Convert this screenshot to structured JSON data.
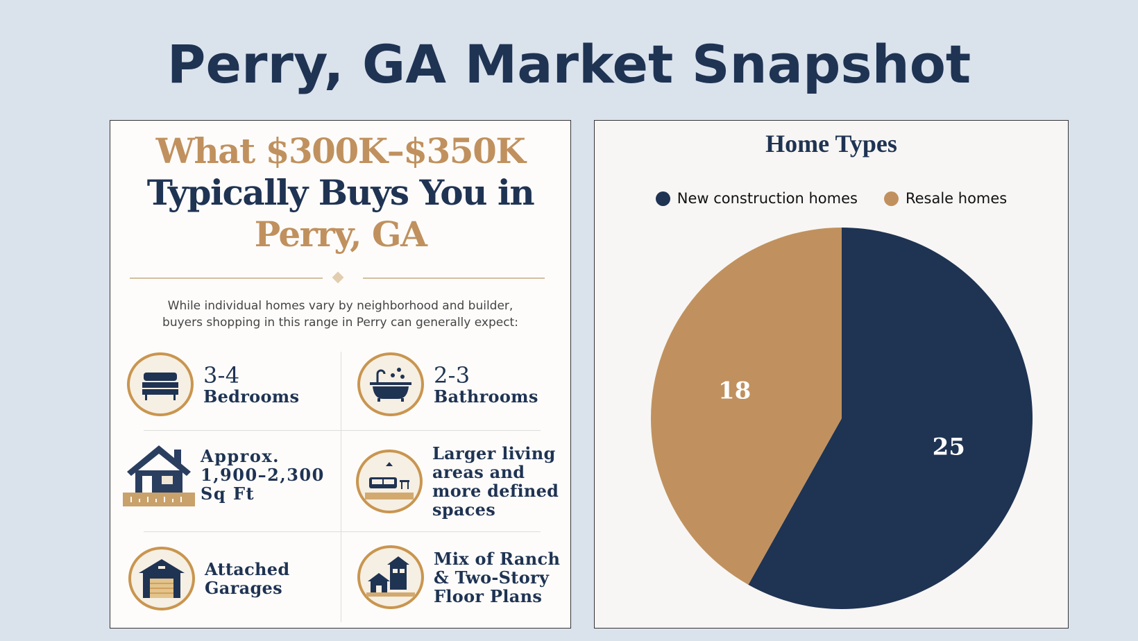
{
  "page_title": "Perry, GA Market Snapshot",
  "infographic": {
    "heading_line1": "What $300K–$350K",
    "heading_line2": "Typically Buys You in",
    "heading_line3": "Perry, GA",
    "intro_line1": "While individual homes vary by neighborhood and builder,",
    "intro_line2": "buyers shopping in this range in Perry can generally expect:",
    "features": [
      {
        "icon": "bed-icon",
        "value": "3-4",
        "label": "Bedrooms"
      },
      {
        "icon": "bathtub-icon",
        "value": "2-3",
        "label": "Bathrooms"
      },
      {
        "icon": "house-ruler-icon",
        "line1": "Approx.",
        "line2": "1,900–2,300",
        "line3": "Sq Ft"
      },
      {
        "icon": "living-room-icon",
        "line1": "Larger living",
        "line2": "areas and",
        "line3": "more defined",
        "line4": "spaces"
      },
      {
        "icon": "garage-icon",
        "line1": "Attached",
        "line2": "Garages"
      },
      {
        "icon": "floor-plan-icon",
        "line1": "Mix of Ranch",
        "line2": "& Two-Story",
        "line3": "Floor Plans"
      }
    ]
  },
  "colors": {
    "navy": "#1f3353",
    "tan": "#c0915e",
    "background": "#dae2ec"
  },
  "chart_data": {
    "type": "pie",
    "title": "Home Types",
    "legend_placement": "top",
    "slices": [
      {
        "name": "New construction homes",
        "value": 25,
        "color": "#1f3353"
      },
      {
        "name": "Resale homes",
        "value": 18,
        "color": "#c0915e"
      }
    ]
  }
}
